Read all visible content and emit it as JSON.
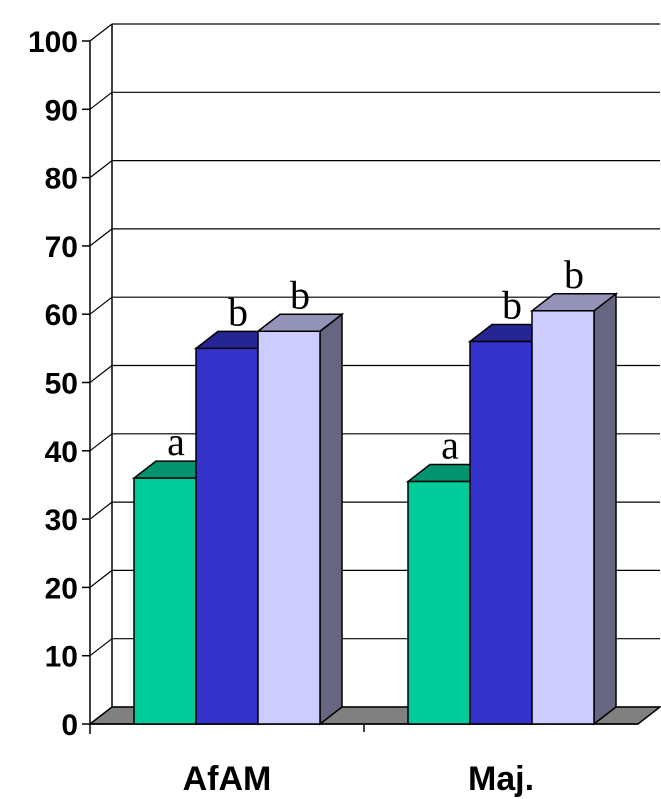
{
  "chart_data": {
    "type": "bar",
    "title": "",
    "xlabel": "",
    "ylabel": "",
    "ylim": [
      0,
      100
    ],
    "yticks": [
      0,
      10,
      20,
      30,
      40,
      50,
      60,
      70,
      80,
      90,
      100
    ],
    "grid": true,
    "legend": "none",
    "categories": [
      "AfAM",
      "Maj."
    ],
    "series": [
      {
        "color": "#00CC99",
        "values": [
          36,
          35.5
        ],
        "labels": [
          "a",
          "a"
        ]
      },
      {
        "color": "#3333CC",
        "values": [
          55,
          56
        ],
        "labels": [
          "b",
          "b"
        ]
      },
      {
        "color": "#CCCCFF",
        "values": [
          57.5,
          60.5
        ],
        "labels": [
          "b",
          "b"
        ]
      }
    ]
  }
}
